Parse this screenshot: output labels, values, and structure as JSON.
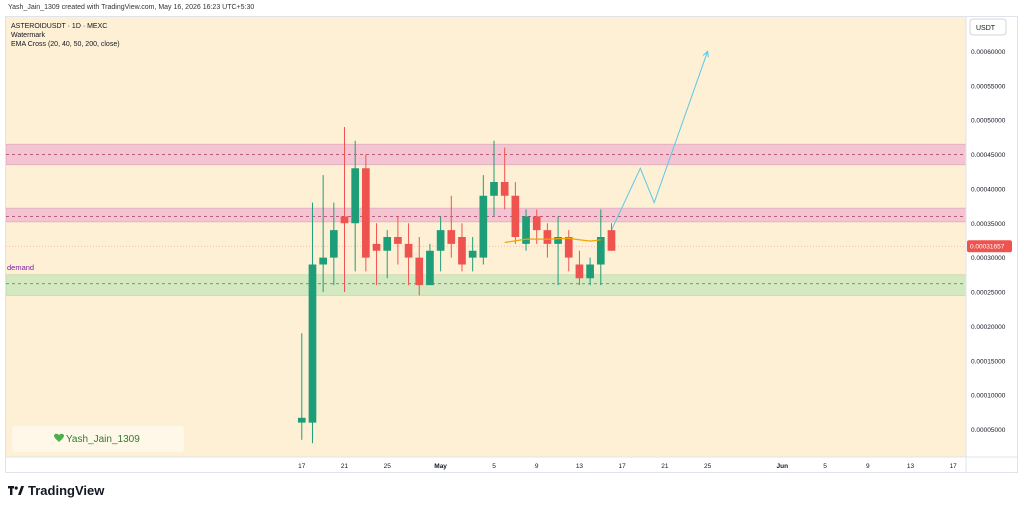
{
  "credit": "Yash_Jain_1309 created with TradingView.com, May 16, 2026 16:23 UTC+5:30",
  "legend": {
    "symbol_line": "ASTEROIDUSDT · 1D · MEXC",
    "watermark_line": "Watermark",
    "indicator_line": "EMA Cross (20, 40, 50, 200, close)"
  },
  "brand": "TradingView",
  "watermark_tag": "Yash_Jain_1309",
  "colors": {
    "background": "#fdf0d5",
    "up": "#26a69a",
    "up_body": "#1e9e78",
    "down": "#ef5350",
    "supply_zone": "#f3c5d2",
    "demand_zone": "#d4e8c2",
    "projection": "#5bc8e6",
    "ema": "#f0a500",
    "price_label": "#ef5350"
  },
  "chart_data": {
    "type": "candlestick",
    "currency_label": "USDT",
    "ylim": [
      1e-05,
      0.00065
    ],
    "y_ticks": [
      "0.00060000",
      "0.00055000",
      "0.00050000",
      "0.00045000",
      "0.00040000",
      "0.00035000",
      "0.00030000",
      "0.00025000",
      "0.00020000",
      "0.00015000",
      "0.00010000",
      "0.00005000"
    ],
    "y_tick_values": [
      0.0006,
      0.00055,
      0.0005,
      0.00045,
      0.0004,
      0.00035,
      0.0003,
      0.00025,
      0.0002,
      0.00015,
      0.0001,
      5e-05
    ],
    "x_ticks": [
      {
        "label": "17",
        "day": 17
      },
      {
        "label": "21",
        "day": 21
      },
      {
        "label": "25",
        "day": 25
      },
      {
        "label": "May",
        "day": 30
      },
      {
        "label": "5",
        "day": 35
      },
      {
        "label": "9",
        "day": 39
      },
      {
        "label": "13",
        "day": 43
      },
      {
        "label": "17",
        "day": 47
      },
      {
        "label": "21",
        "day": 51
      },
      {
        "label": "25",
        "day": 55
      },
      {
        "label": "Jun",
        "day": 62
      },
      {
        "label": "5",
        "day": 66
      },
      {
        "label": "9",
        "day": 70
      },
      {
        "label": "13",
        "day": 74
      },
      {
        "label": "17",
        "day": 78
      }
    ],
    "xlim": [
      -10.7,
      79.2
    ],
    "current_price": "0.00031657",
    "current_price_value": 0.00031657,
    "candles": [
      {
        "day": 17,
        "o": 6e-05,
        "h": 0.00019,
        "l": 3.5e-05,
        "c": 6.7e-05
      },
      {
        "day": 18,
        "o": 6e-05,
        "h": 0.00038,
        "l": 3e-05,
        "c": 0.00029
      },
      {
        "day": 19,
        "o": 0.00029,
        "h": 0.00042,
        "l": 0.00025,
        "c": 0.0003
      },
      {
        "day": 20,
        "o": 0.0003,
        "h": 0.00038,
        "l": 0.00026,
        "c": 0.00034
      },
      {
        "day": 21,
        "o": 0.00036,
        "h": 0.00049,
        "l": 0.00025,
        "c": 0.00035
      },
      {
        "day": 22,
        "o": 0.00035,
        "h": 0.00047,
        "l": 0.00028,
        "c": 0.00043
      },
      {
        "day": 23,
        "o": 0.00043,
        "h": 0.00045,
        "l": 0.00028,
        "c": 0.0003
      },
      {
        "day": 24,
        "o": 0.00032,
        "h": 0.00035,
        "l": 0.00026,
        "c": 0.00031
      },
      {
        "day": 25,
        "o": 0.00031,
        "h": 0.00034,
        "l": 0.00027,
        "c": 0.00033
      },
      {
        "day": 26,
        "o": 0.00033,
        "h": 0.00036,
        "l": 0.00029,
        "c": 0.00032
      },
      {
        "day": 27,
        "o": 0.00032,
        "h": 0.00035,
        "l": 0.00026,
        "c": 0.0003
      },
      {
        "day": 28,
        "o": 0.0003,
        "h": 0.00033,
        "l": 0.000245,
        "c": 0.00026
      },
      {
        "day": 29,
        "o": 0.00026,
        "h": 0.00032,
        "l": 0.00026,
        "c": 0.00031
      },
      {
        "day": 30,
        "o": 0.00031,
        "h": 0.00036,
        "l": 0.00028,
        "c": 0.00034
      },
      {
        "day": 31,
        "o": 0.00034,
        "h": 0.00039,
        "l": 0.0003,
        "c": 0.00032
      },
      {
        "day": 32,
        "o": 0.00033,
        "h": 0.00035,
        "l": 0.00028,
        "c": 0.00029
      },
      {
        "day": 33,
        "o": 0.0003,
        "h": 0.00033,
        "l": 0.00028,
        "c": 0.00031
      },
      {
        "day": 34,
        "o": 0.0003,
        "h": 0.00042,
        "l": 0.00029,
        "c": 0.00039
      },
      {
        "day": 35,
        "o": 0.00039,
        "h": 0.00047,
        "l": 0.00036,
        "c": 0.00041
      },
      {
        "day": 36,
        "o": 0.00041,
        "h": 0.00046,
        "l": 0.00037,
        "c": 0.00039
      },
      {
        "day": 37,
        "o": 0.00039,
        "h": 0.00041,
        "l": 0.00032,
        "c": 0.00033
      },
      {
        "day": 38,
        "o": 0.00032,
        "h": 0.00037,
        "l": 0.00031,
        "c": 0.00036
      },
      {
        "day": 39,
        "o": 0.00036,
        "h": 0.00037,
        "l": 0.00032,
        "c": 0.00034
      },
      {
        "day": 40,
        "o": 0.00034,
        "h": 0.00035,
        "l": 0.0003,
        "c": 0.00032
      },
      {
        "day": 41,
        "o": 0.00032,
        "h": 0.00036,
        "l": 0.00026,
        "c": 0.00033
      },
      {
        "day": 42,
        "o": 0.00033,
        "h": 0.00034,
        "l": 0.00028,
        "c": 0.0003
      },
      {
        "day": 43,
        "o": 0.00029,
        "h": 0.00031,
        "l": 0.00026,
        "c": 0.00027
      },
      {
        "day": 44,
        "o": 0.00027,
        "h": 0.0003,
        "l": 0.00026,
        "c": 0.00029
      },
      {
        "day": 45,
        "o": 0.00029,
        "h": 0.00037,
        "l": 0.00026,
        "c": 0.00033
      },
      {
        "day": 46,
        "o": 0.00034,
        "h": 0.00035,
        "l": 0.00031,
        "c": 0.00031
      }
    ],
    "ema_line": [
      {
        "day": 36,
        "v": 0.000322
      },
      {
        "day": 38,
        "v": 0.000327
      },
      {
        "day": 40,
        "v": 0.000327
      },
      {
        "day": 42,
        "v": 0.000328
      },
      {
        "day": 44,
        "v": 0.000324
      },
      {
        "day": 45,
        "v": 0.000326
      }
    ],
    "zones": [
      {
        "kind": "supply",
        "from": 0.000435,
        "to": 0.000465,
        "mid": 0.00045
      },
      {
        "kind": "supply",
        "from": 0.000352,
        "to": 0.000372,
        "mid": 0.00036
      },
      {
        "kind": "demand",
        "label": "demand",
        "from": 0.000245,
        "to": 0.000275,
        "mid": 0.000262
      }
    ],
    "projection_path": [
      {
        "day": 46,
        "v": 0.00034
      },
      {
        "day": 48.7,
        "v": 0.00043
      },
      {
        "day": 50,
        "v": 0.00038
      },
      {
        "day": 55,
        "v": 0.0006
      }
    ]
  }
}
